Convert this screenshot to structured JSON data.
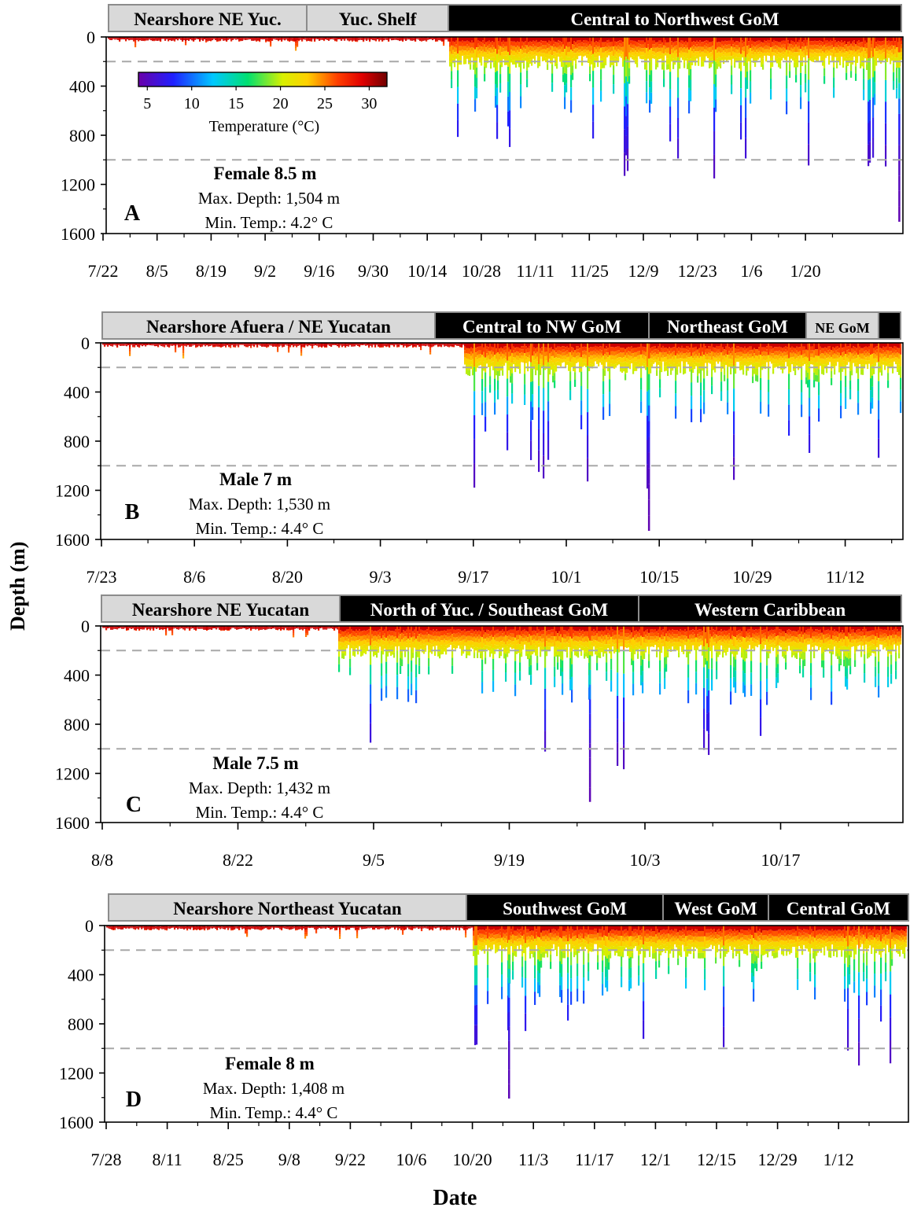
{
  "figure": {
    "ylabel": "Depth (m)",
    "xlabel": "Date",
    "colorbar": {
      "label": "Temperature (°C)",
      "ticks": [
        5,
        10,
        15,
        20,
        25,
        30
      ],
      "range": [
        4,
        32
      ]
    }
  },
  "chart_data": [
    {
      "type": "area",
      "panel": "A",
      "ylim": [
        1600,
        0
      ],
      "yticks": [
        0,
        400,
        800,
        1200,
        1600
      ],
      "reference_depths": [
        200,
        1000
      ],
      "xticks": [
        "7/22",
        "8/5",
        "8/19",
        "9/2",
        "9/16",
        "9/30",
        "10/14",
        "10/28",
        "11/11",
        "11/25",
        "12/9",
        "12/23",
        "1/6",
        "1/20"
      ],
      "annotation": {
        "title": "Female  8.5 m",
        "line1": "Max. Depth: 1,504 m",
        "line2": "Min. Temp.: 4.2° C"
      },
      "regions": [
        {
          "label": "Nearshore NE Yuc.",
          "style": "light",
          "start": "7/22",
          "end": "9/7"
        },
        {
          "label": "Yuc. Shelf",
          "style": "light",
          "start": "9/7",
          "end": "10/10"
        },
        {
          "label": "Central to Northwest GoM",
          "style": "dark",
          "start": "10/10",
          "end": "1/27"
        }
      ],
      "dive_profile": {
        "day_dive_pattern": [
          "7/22-10/10: surface 0-120 m",
          "10/10-1/27: daily dives 300-1504 m"
        ],
        "max_depth": 1504,
        "min_temp": 4.2
      }
    },
    {
      "type": "area",
      "panel": "B",
      "ylim": [
        1600,
        0
      ],
      "yticks": [
        0,
        400,
        800,
        1200,
        1600
      ],
      "reference_depths": [
        200,
        1000
      ],
      "xticks": [
        "7/23",
        "8/6",
        "8/20",
        "9/3",
        "9/17",
        "10/1",
        "10/15",
        "10/29",
        "11/12"
      ],
      "annotation": {
        "title": "Male  7 m",
        "line1": "Max. Depth: 1,530 m",
        "line2": "Min. Temp.: 4.4° C"
      },
      "regions": [
        {
          "label": "Nearshore Afuera / NE Yucatan",
          "style": "light",
          "start": "7/23",
          "end": "9/13"
        },
        {
          "label": "Central to NW GoM",
          "style": "dark",
          "start": "9/13",
          "end": "10/13"
        },
        {
          "label": "Northeast GoM",
          "style": "dark",
          "start": "10/13",
          "end": "11/5"
        },
        {
          "label": "NE GoM",
          "style": "light",
          "start": "11/5",
          "end": "11/15"
        },
        {
          "label": "",
          "style": "dark",
          "start": "11/15",
          "end": "11/18"
        }
      ],
      "dive_profile": {
        "max_depth": 1530,
        "min_temp": 4.4
      }
    },
    {
      "type": "area",
      "panel": "C",
      "ylim": [
        1600,
        0
      ],
      "yticks": [
        0,
        400,
        800,
        1200,
        1600
      ],
      "reference_depths": [
        200,
        1000
      ],
      "xticks": [
        "8/8",
        "8/22",
        "9/5",
        "9/19",
        "10/3",
        "10/17"
      ],
      "annotation": {
        "title": "Male  7.5 m",
        "line1": "Max. Depth: 1,432 m",
        "line2": "Min. Temp.: 4.4° C"
      },
      "regions": [
        {
          "label": "Nearshore NE Yucatan",
          "style": "light",
          "start": "8/8",
          "end": "9/2"
        },
        {
          "label": "North of Yuc. / Southeast GoM",
          "style": "dark",
          "start": "9/2",
          "end": "10/2"
        },
        {
          "label": "Western Caribbean",
          "style": "dark",
          "start": "10/2",
          "end": "10/30"
        }
      ],
      "dive_profile": {
        "max_depth": 1432,
        "min_temp": 4.4
      }
    },
    {
      "type": "area",
      "panel": "D",
      "ylim": [
        1600,
        0
      ],
      "yticks": [
        0,
        400,
        800,
        1200,
        1600
      ],
      "reference_depths": [
        200,
        1000
      ],
      "xticks": [
        "7/28",
        "8/11",
        "8/25",
        "9/8",
        "9/22",
        "10/6",
        "10/20",
        "11/3",
        "11/17",
        "12/1",
        "12/15",
        "12/29",
        "1/12"
      ],
      "annotation": {
        "title": "Female  8 m",
        "line1": "Max. Depth: 1,408 m",
        "line2": "Min. Temp.: 4.4° C"
      },
      "regions": [
        {
          "label": "Nearshore Northeast Yucatan",
          "style": "light",
          "start": "7/28",
          "end": "10/19"
        },
        {
          "label": "Southwest GoM",
          "style": "dark",
          "start": "10/19",
          "end": "11/28"
        },
        {
          "label": "West GoM",
          "style": "dark",
          "start": "11/28",
          "end": "12/14"
        },
        {
          "label": "Central GoM",
          "style": "dark",
          "start": "12/14",
          "end": "1/21"
        }
      ],
      "dive_profile": {
        "max_depth": 1408,
        "min_temp": 4.4
      }
    }
  ]
}
